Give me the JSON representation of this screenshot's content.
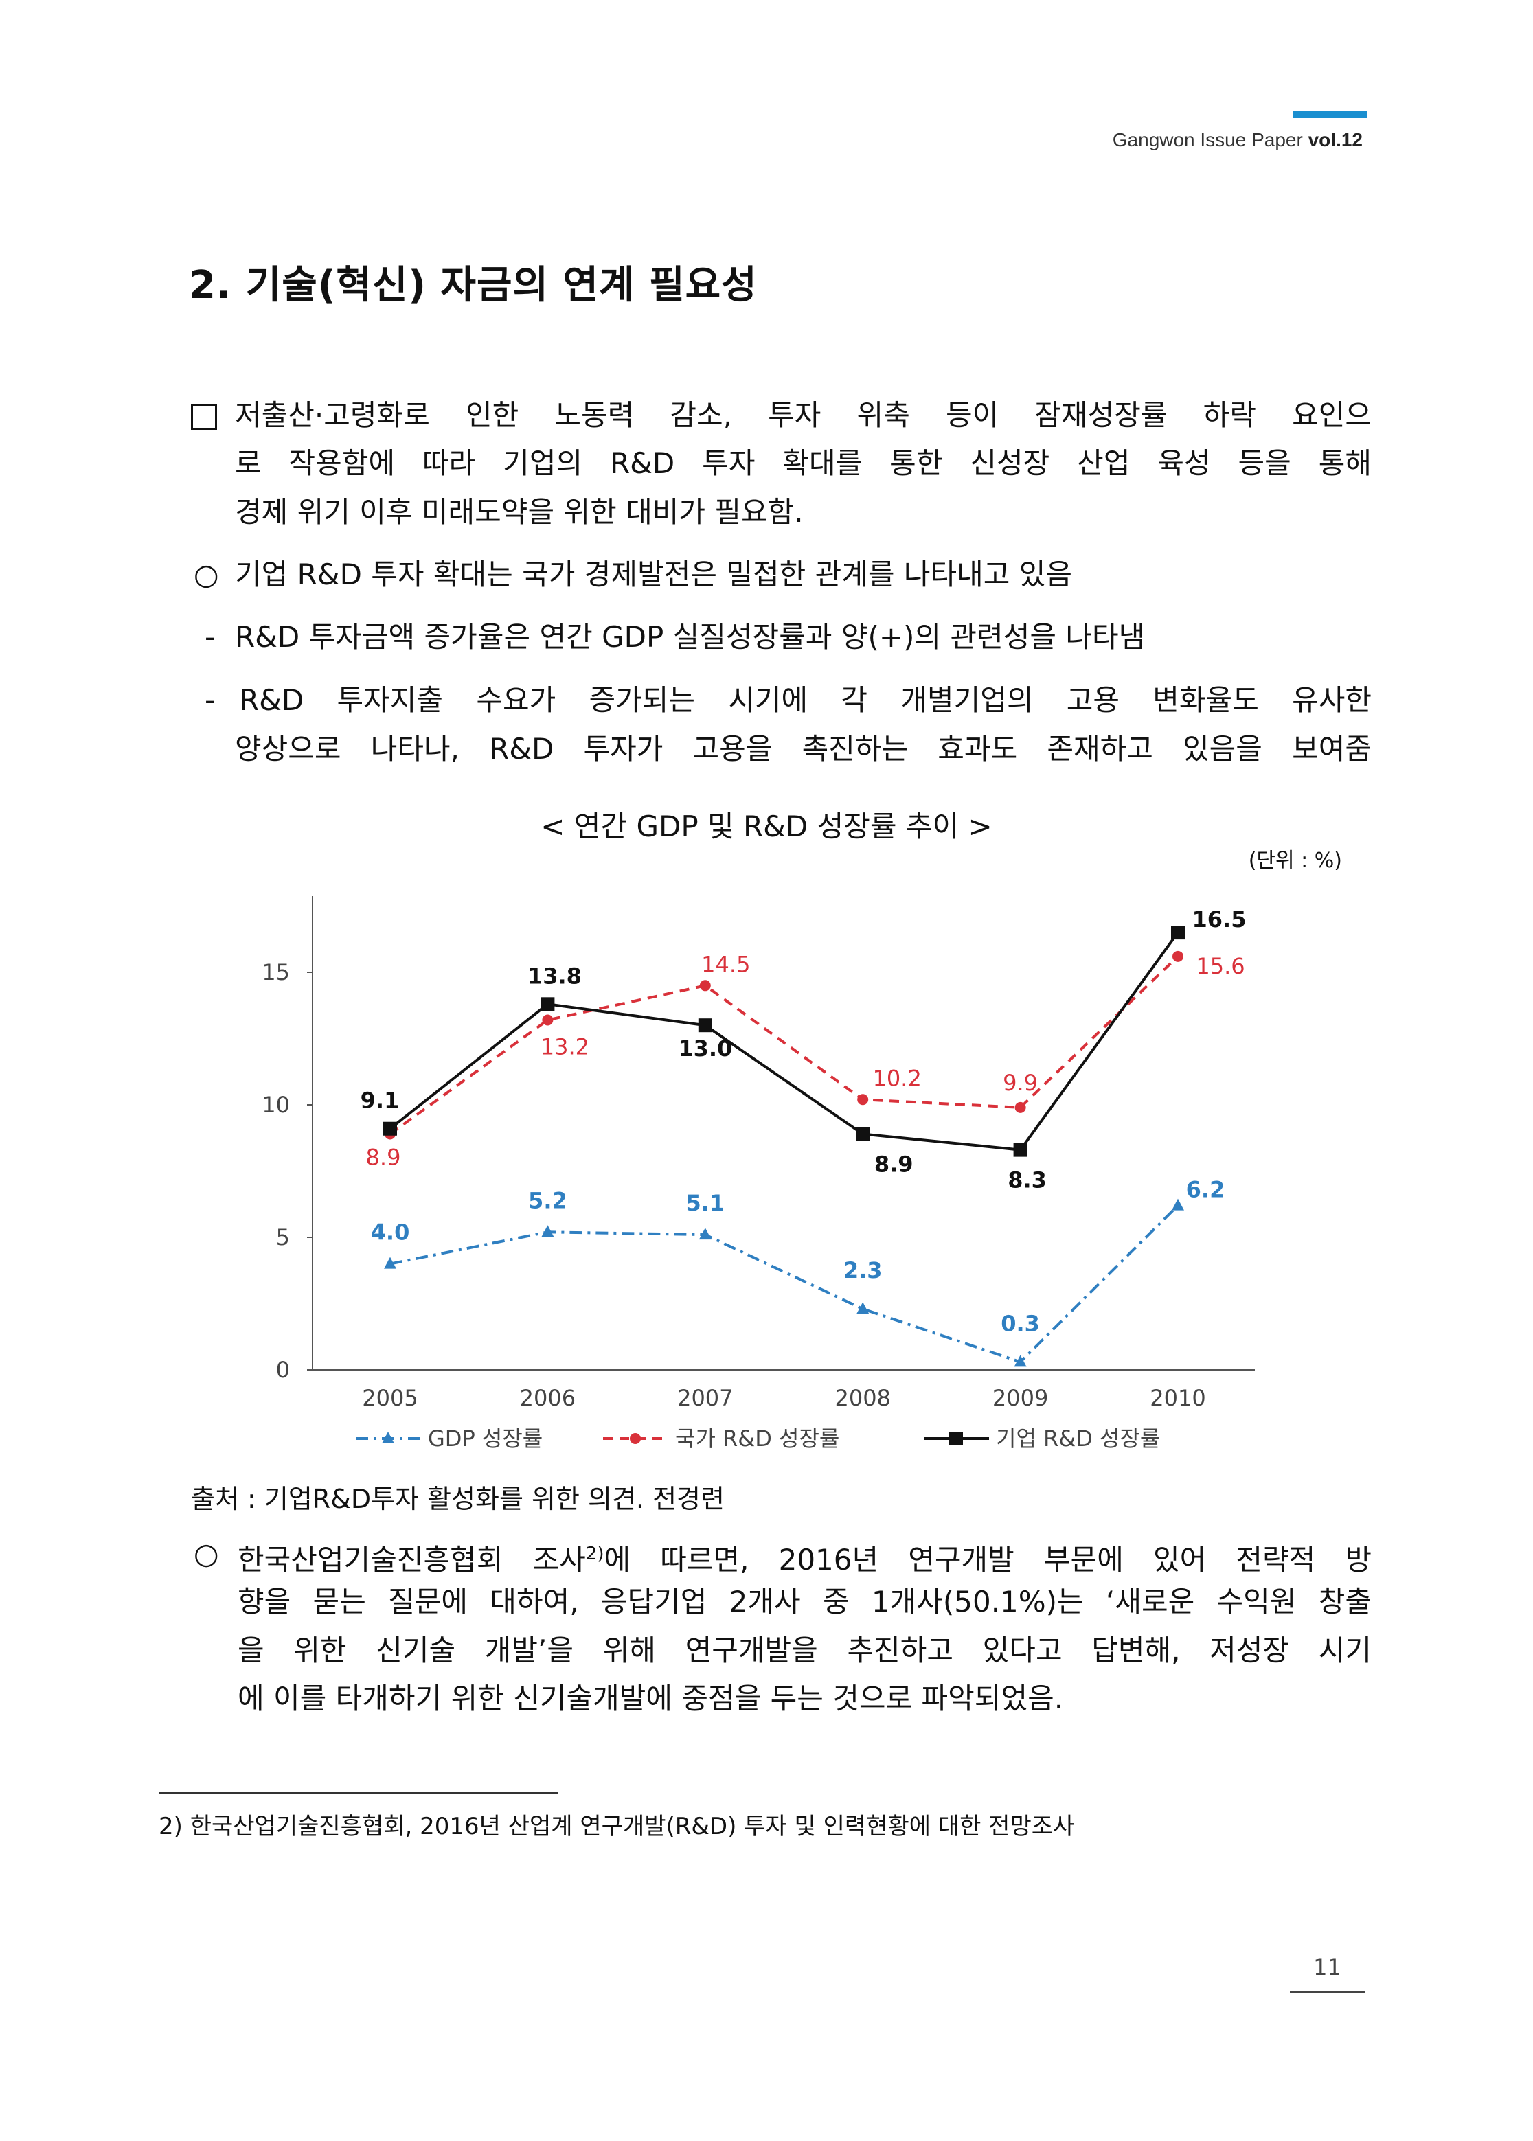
{
  "header": {
    "publication": "Gangwon Issue Paper ",
    "volume": "vol.12"
  },
  "title": "2. 기술(혁신) 자금의 연계 필요성",
  "para1": {
    "lines": [
      "저출산·고령화로 인한 노동력 감소, 투자 위축 등이 잠재성장률 하락 요인으",
      "로 작용함에 따라 기업의 R&D 투자 확대를 통한 신성장 산업 육성 등을 통해",
      "경제 위기 이후 미래도약을 위한 대비가 필요함."
    ]
  },
  "bullet1": {
    "marker": "○",
    "text": "기업 R&D 투자 확대는 국가 경제발전은 밀접한 관계를 나타내고 있음"
  },
  "dash1": {
    "marker": "-",
    "text": "R&D 투자금액 증가율은 연간 GDP 실질성장률과 양(+)의 관련성을 나타냄"
  },
  "dash2": {
    "marker": "-",
    "lines": [
      "R&D 투자지출 수요가 증가되는 시기에 각 개별기업의 고용 변화율도 유사한",
      "양상으로 나타나, R&D 투자가 고용을 촉진하는 효과도 존재하고 있음을 보여줌"
    ]
  },
  "chart_title": "< 연간 GDP 및 R&D 성장률 추이 >",
  "unit": "(단위 : %)",
  "chart_data": {
    "type": "line",
    "title": "연간 GDP 및 R&D 성장률 추이",
    "x": [
      "2005",
      "2006",
      "2007",
      "2008",
      "2009",
      "2010"
    ],
    "ylim": [
      0,
      17
    ],
    "yticks": [
      "0",
      "5",
      "10",
      "15"
    ],
    "legend_position": "bottom",
    "series": [
      {
        "name": "GDP 성장률",
        "values": [
          4.0,
          5.2,
          5.1,
          2.3,
          0.3,
          6.2
        ],
        "labels": [
          "4.0",
          "5.2",
          "5.1",
          "2.3",
          "0.3",
          "6.2"
        ],
        "color": "#2f7fc1",
        "style": "dash-dot",
        "marker": "triangle"
      },
      {
        "name": "국가 R&D 성장률",
        "values": [
          8.9,
          13.2,
          14.5,
          10.2,
          9.9,
          15.6
        ],
        "labels": [
          "8.9",
          "13.2",
          "14.5",
          "10.2",
          "9.9",
          "15.6"
        ],
        "color": "#d9313a",
        "style": "dashed",
        "marker": "diamond"
      },
      {
        "name": "기업 R&D 성장률",
        "values": [
          9.1,
          13.8,
          13.0,
          8.9,
          8.3,
          16.5
        ],
        "labels": [
          "9.1",
          "13.8",
          "13.0",
          "8.9",
          "8.3",
          "16.5"
        ],
        "color": "#111111",
        "style": "solid",
        "marker": "square"
      }
    ]
  },
  "source": "출처 : 기업R&D투자 활성화를 위한 의견. 전경련",
  "bullet2": {
    "marker": "○",
    "lines": [
      "한국산업기술진흥협회 조사",
      "에 따르면, 2016년 연구개발 부문에 있어 전략적 방",
      "향을 묻는 질문에 대하여, 응답기업 2개사 중 1개사(50.1%)는 ‘새로운 수익원 창출",
      "을 위한 신기술 개발’을 위해 연구개발을 추진하고 있다고 답변해, 저성장 시기",
      "에 이를 타개하기 위한 신기술개발에 중점을 두는 것으로 파악되었음."
    ],
    "footnote_ref": "2)"
  },
  "footnote": "2) 한국산업기술진흥협회, 2016년 산업계 연구개발(R&D) 투자 및 인력현황에 대한 전망조사",
  "page_number": "11"
}
